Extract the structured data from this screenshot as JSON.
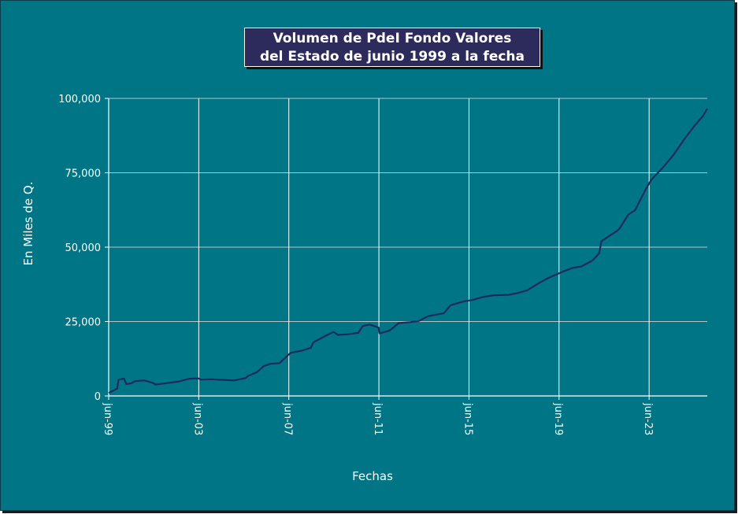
{
  "chart_data": {
    "type": "line",
    "title_lines": [
      "Volumen de PdeI Fondo Valores",
      "del Estado de junio 1999 a la fecha"
    ],
    "xlabel": "Fechas",
    "ylabel": "En Miles de Q.",
    "ylim": [
      0,
      100000
    ],
    "yticks": [
      0,
      25000,
      50000,
      75000,
      100000
    ],
    "ytick_labels": [
      "0",
      "25,000",
      "50,000",
      "75,000",
      "100,000"
    ],
    "xlim": [
      1999.417,
      2026.0
    ],
    "xticks": [
      1999.417,
      2003.417,
      2007.417,
      2011.417,
      2015.417,
      2019.417,
      2023.417
    ],
    "xtick_labels": [
      "jun-99",
      "jun-03",
      "jun-07",
      "jun-11",
      "jun-15",
      "jun-19",
      "jun-23"
    ],
    "grid": true,
    "series": [
      {
        "color": "#1e2a5e",
        "x": [
          1999.42,
          1999.8,
          1999.85,
          2000.1,
          2000.2,
          2000.4,
          2000.6,
          2001.0,
          2001.4,
          2001.5,
          2002.0,
          2002.5,
          2003.0,
          2003.4,
          2003.5,
          2004.0,
          2004.5,
          2005.0,
          2005.5,
          2005.6,
          2006.0,
          2006.3,
          2006.6,
          2007.0,
          2007.4,
          2007.5,
          2008.0,
          2008.4,
          2008.5,
          2009.0,
          2009.4,
          2009.6,
          2010.0,
          2010.5,
          2010.7,
          2011.0,
          2011.4,
          2011.45,
          2011.9,
          2012.3,
          2012.8,
          2013.2,
          2013.6,
          2014.3,
          2014.6,
          2015.2,
          2015.6,
          2016.0,
          2016.5,
          2017.2,
          2017.6,
          2018.0,
          2018.5,
          2018.9,
          2019.2,
          2019.6,
          2020.0,
          2020.4,
          2020.9,
          2021.2,
          2021.3,
          2022.0,
          2022.1,
          2022.5,
          2022.8,
          2023.2,
          2023.5,
          2024.0,
          2024.5,
          2025.0,
          2025.4,
          2025.8,
          2026.0
        ],
        "y": [
          1000,
          2500,
          5500,
          5800,
          4000,
          4200,
          5000,
          5200,
          4300,
          3800,
          4300,
          4800,
          5800,
          5900,
          5500,
          5600,
          5400,
          5200,
          6000,
          6700,
          8000,
          10000,
          10800,
          11000,
          13800,
          14500,
          15200,
          16200,
          18000,
          20000,
          21500,
          20500,
          20700,
          21200,
          23500,
          24000,
          23000,
          21000,
          22000,
          24500,
          24800,
          25200,
          26800,
          27800,
          30500,
          31800,
          32300,
          33200,
          33800,
          34000,
          34600,
          35500,
          37800,
          39500,
          40500,
          41800,
          43000,
          43500,
          45500,
          48000,
          52000,
          55500,
          56200,
          61000,
          62500,
          68500,
          72500,
          76500,
          81000,
          86500,
          90500,
          94000,
          96500
        ]
      }
    ]
  }
}
